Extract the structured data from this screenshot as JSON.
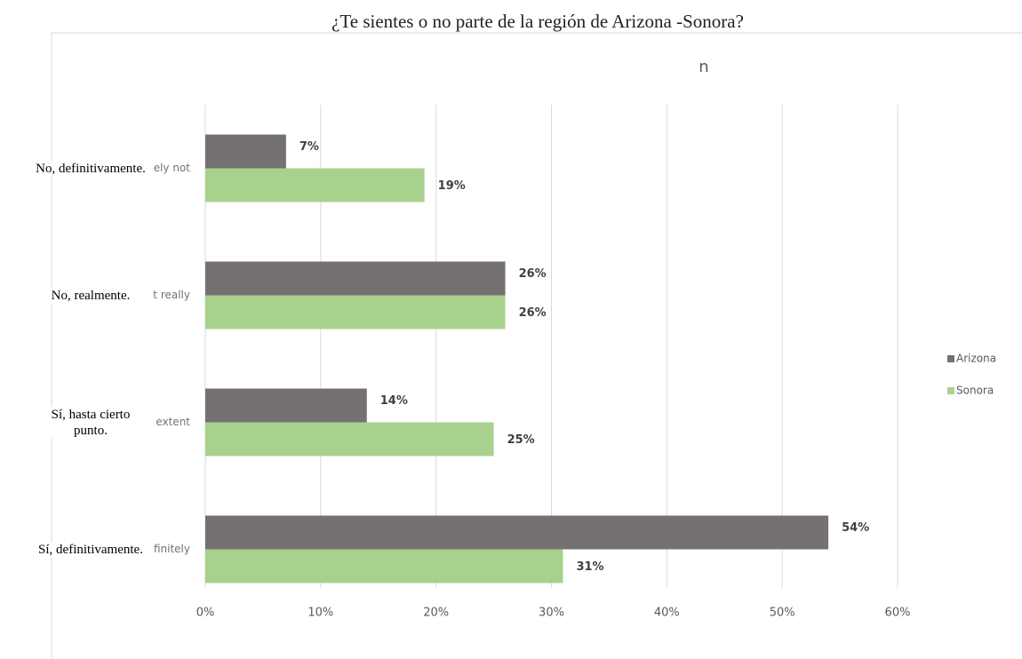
{
  "chart_data": {
    "type": "bar",
    "orientation": "horizontal",
    "title": "¿Te sientes o no parte de la región de Arizona -Sonora?",
    "subtitle": "n",
    "categories": [
      "No, definitivamente.",
      "No, realmente.",
      "Sí, hasta cierto punto.",
      "Sí, definitivamente."
    ],
    "partial_labels": [
      "ely not",
      "t really",
      "extent",
      "finitely"
    ],
    "series": [
      {
        "name": "Arizona",
        "color": "#767171",
        "values": [
          7,
          26,
          14,
          54
        ],
        "value_labels": [
          "7%",
          "26%",
          "14%",
          "54%"
        ]
      },
      {
        "name": "Sonora",
        "color": "#a9d18e",
        "values": [
          19,
          26,
          25,
          31
        ],
        "value_labels": [
          "19%",
          "26%",
          "25%",
          "31%"
        ]
      }
    ],
    "xlim": [
      0,
      60
    ],
    "xticks": [
      {
        "value": 0,
        "label": "0%"
      },
      {
        "value": 10,
        "label": "10%"
      },
      {
        "value": 20,
        "label": "20%"
      },
      {
        "value": 30,
        "label": "30%"
      },
      {
        "value": 40,
        "label": "40%"
      },
      {
        "value": 50,
        "label": "50%"
      },
      {
        "value": 60,
        "label": "60%"
      }
    ],
    "grid": true,
    "legend": "right"
  }
}
